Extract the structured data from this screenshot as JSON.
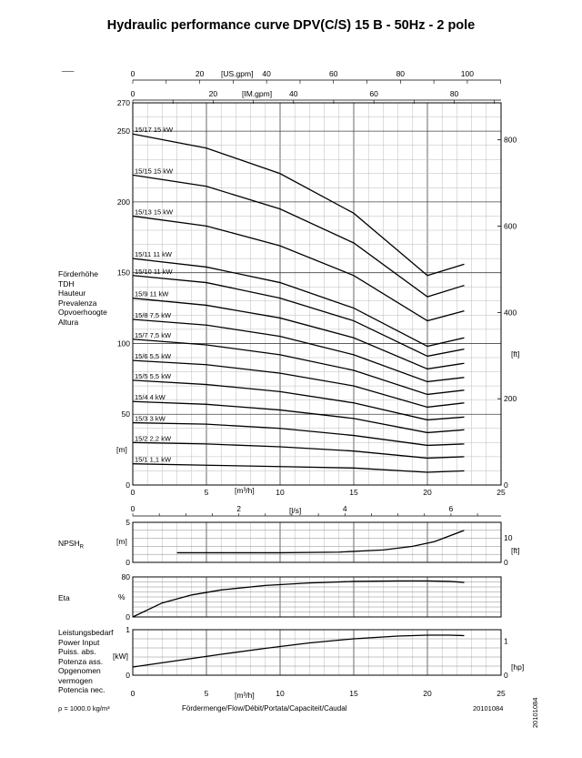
{
  "title": "Hydraulic performance curve DPV(C/S) 15 B - 50Hz - 2 pole",
  "corner_mark": "___",
  "axes_text": {
    "usgpm_unit": "[US.gpm]",
    "imgpm_unit": "[IM.gpm]",
    "m3h_unit": "[m³/h]",
    "ls_unit": "[l/s]",
    "head_unit_m": "[m]",
    "head_unit_ft": "[ft]",
    "npsh_unit_m": "[m]",
    "npsh_unit_ft": "[ft]",
    "eta_unit": "%",
    "power_unit_kw": "[kW]",
    "power_unit_hp": "[hp]"
  },
  "left_labels": {
    "head": [
      "Förderhöhe",
      "TDH",
      "Hauteur",
      "Prevalenza",
      "Opvoerhoogte",
      "Altura"
    ],
    "npsh": "NPSH",
    "npsh_sub": "R",
    "eta": "Eta",
    "power": [
      "Leistungsbedarf",
      "Power Input",
      "Puiss. abs.",
      "Potenza ass.",
      "Opgenomen",
      "vermogen",
      "Potencia nec."
    ]
  },
  "footer": {
    "density": "ρ = 1000.0 kg/m³",
    "flow_label": "Fördermenge/Flow/Débit/Portata/Capaciteit/Caudal",
    "code": "20101084",
    "code_vertical": "20101084"
  },
  "chart_data": [
    {
      "type": "line",
      "name": "head",
      "x_unit": "m³/h",
      "xlim": [
        0,
        25
      ],
      "ylim": [
        0,
        270
      ],
      "yticks": [
        0,
        50,
        100,
        150,
        200,
        250,
        270
      ],
      "secondary_y": {
        "unit": "ft",
        "ticks": [
          0,
          200,
          400,
          600,
          800
        ]
      },
      "top_axis_usgpm": {
        "ticks": [
          0,
          20,
          40,
          60,
          80,
          100
        ]
      },
      "top_axis_imgpm": {
        "ticks": [
          0,
          20,
          40,
          60,
          80
        ]
      },
      "ls_axis": {
        "ticks": [
          0,
          2,
          4,
          6
        ]
      },
      "grid": true,
      "series": [
        {
          "name": "15/17 15 kW",
          "x": [
            0,
            5,
            10,
            15,
            20,
            22.5
          ],
          "y": [
            248,
            238,
            220,
            192,
            148,
            156
          ]
        },
        {
          "name": "15/15 15 kW",
          "x": [
            0,
            5,
            10,
            15,
            20,
            22.5
          ],
          "y": [
            219,
            211,
            195,
            171,
            133,
            141
          ]
        },
        {
          "name": "15/13 15 kW",
          "x": [
            0,
            5,
            10,
            15,
            20,
            22.5
          ],
          "y": [
            190,
            183,
            169,
            148,
            116,
            123
          ]
        },
        {
          "name": "15/11 11 kW",
          "x": [
            0,
            5,
            10,
            15,
            20,
            22.5
          ],
          "y": [
            160,
            154,
            143,
            125,
            98,
            104
          ]
        },
        {
          "name": "15/10 11 kW",
          "x": [
            0,
            5,
            10,
            15,
            20,
            22.5
          ],
          "y": [
            148,
            143,
            132,
            116,
            91,
            96
          ]
        },
        {
          "name": "15/9 11 kW",
          "x": [
            0,
            5,
            10,
            15,
            20,
            22.5
          ],
          "y": [
            132,
            127,
            118,
            104,
            82,
            86
          ]
        },
        {
          "name": "15/8 7,5 kW",
          "x": [
            0,
            5,
            10,
            15,
            20,
            22.5
          ],
          "y": [
            117,
            113,
            105,
            92,
            73,
            76
          ]
        },
        {
          "name": "15/7 7,5 kW",
          "x": [
            0,
            5,
            10,
            15,
            20,
            22.5
          ],
          "y": [
            103,
            99,
            92,
            81,
            64,
            67
          ]
        },
        {
          "name": "15/6 5,5 kW",
          "x": [
            0,
            5,
            10,
            15,
            20,
            22.5
          ],
          "y": [
            88,
            85,
            79,
            70,
            55,
            58
          ]
        },
        {
          "name": "15/5 5,5 kW",
          "x": [
            0,
            5,
            10,
            15,
            20,
            22.5
          ],
          "y": [
            74,
            71,
            66,
            58,
            46,
            48
          ]
        },
        {
          "name": "15/4 4 kW",
          "x": [
            0,
            5,
            10,
            15,
            20,
            22.5
          ],
          "y": [
            59,
            57,
            53,
            47,
            37,
            39
          ]
        },
        {
          "name": "15/3 3 kW",
          "x": [
            0,
            5,
            10,
            15,
            20,
            22.5
          ],
          "y": [
            44,
            43,
            40,
            35,
            28,
            29
          ]
        },
        {
          "name": "15/2 2,2 kW",
          "x": [
            0,
            5,
            10,
            15,
            20,
            22.5
          ],
          "y": [
            30,
            29,
            27,
            24,
            19,
            20
          ]
        },
        {
          "name": "15/1 1,1 kW",
          "x": [
            0,
            5,
            10,
            15,
            20,
            22.5
          ],
          "y": [
            15,
            14,
            13,
            12,
            9,
            10
          ]
        }
      ]
    },
    {
      "type": "line",
      "name": "npsh",
      "x_unit": "m³/h",
      "xlim": [
        0,
        25
      ],
      "ylim": [
        0,
        5
      ],
      "yticks": [
        0,
        5
      ],
      "secondary_y": {
        "unit": "ft",
        "ticks": [
          0,
          10
        ]
      },
      "grid": true,
      "series": [
        {
          "name": "",
          "x": [
            3,
            6,
            10,
            14,
            17,
            19,
            20.5,
            22.5
          ],
          "y": [
            1.2,
            1.2,
            1.2,
            1.28,
            1.55,
            2.0,
            2.6,
            4.0
          ]
        }
      ]
    },
    {
      "type": "line",
      "name": "eta",
      "x_unit": "m³/h",
      "xlim": [
        0,
        25
      ],
      "ylim": [
        0,
        80
      ],
      "yticks": [
        0,
        80
      ],
      "grid": true,
      "series": [
        {
          "name": "",
          "x": [
            0,
            2,
            4,
            6,
            9,
            12,
            15,
            18,
            20,
            21.5,
            22.5
          ],
          "y": [
            0,
            28,
            44,
            54,
            63,
            68,
            71,
            72,
            72,
            71,
            69
          ]
        }
      ]
    },
    {
      "type": "line",
      "name": "power",
      "x_unit": "m³/h",
      "xlim": [
        0,
        25
      ],
      "xticks": [
        0,
        5,
        10,
        15,
        20,
        25
      ],
      "ylim": [
        0,
        1
      ],
      "yticks": [
        0,
        1
      ],
      "secondary_y": {
        "unit": "hp",
        "ticks": [
          0,
          1
        ]
      },
      "grid": true,
      "series": [
        {
          "name": "",
          "x": [
            0,
            3,
            6,
            9,
            12,
            15,
            18,
            20,
            21.5,
            22.5
          ],
          "y": [
            0.18,
            0.32,
            0.46,
            0.59,
            0.71,
            0.8,
            0.86,
            0.88,
            0.88,
            0.87
          ]
        }
      ]
    }
  ]
}
